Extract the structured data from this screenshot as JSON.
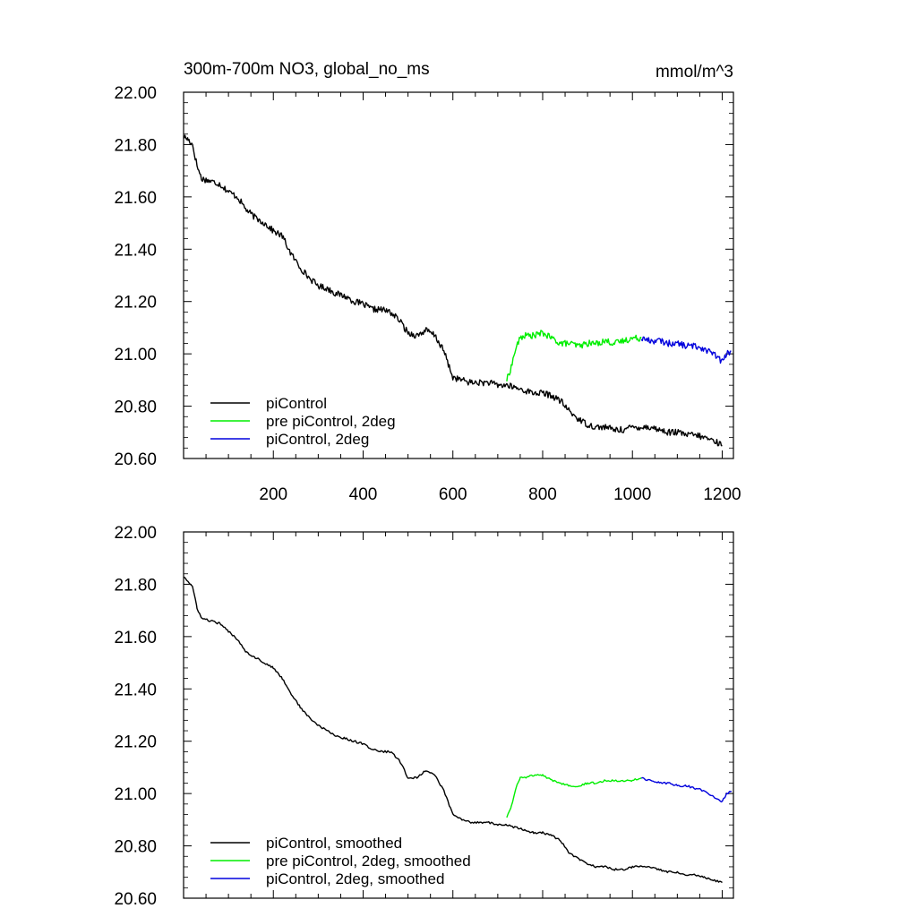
{
  "title_left": "300m-700m NO3, global_no_ms",
  "title_right": "mmol/m^3",
  "colors": {
    "piControl": "#000000",
    "pre": "#00ee00",
    "twodeg": "#0000dd",
    "axis": "#000000"
  },
  "chart_data": [
    {
      "type": "line",
      "title": "300m-700m NO3, global_no_ms",
      "units": "mmol/m^3",
      "xlim": [
        0,
        1225
      ],
      "ylim": [
        20.6,
        22.0
      ],
      "x_ticks": [
        200,
        400,
        600,
        800,
        1000,
        1200
      ],
      "x_tick_labels": [
        "200",
        "400",
        "600",
        "800",
        "1000",
        "1200"
      ],
      "y_ticks": [
        20.6,
        20.8,
        21.0,
        21.2,
        21.4,
        21.6,
        21.8,
        22.0
      ],
      "y_tick_labels": [
        "20.60",
        "20.80",
        "21.00",
        "21.20",
        "21.40",
        "21.60",
        "21.80",
        "22.00"
      ],
      "legend": "bottom-left",
      "series": [
        {
          "name": "piControl",
          "color": "#000000",
          "x": [
            1,
            10,
            20,
            30,
            40,
            60,
            80,
            100,
            120,
            140,
            160,
            180,
            200,
            220,
            240,
            260,
            280,
            300,
            320,
            340,
            360,
            380,
            400,
            420,
            440,
            460,
            480,
            500,
            520,
            540,
            560,
            580,
            600,
            620,
            640,
            660,
            680,
            700,
            720,
            740,
            760,
            780,
            800,
            820,
            840,
            860,
            880,
            900,
            920,
            940,
            960,
            980,
            1000,
            1020,
            1040,
            1060,
            1080,
            1100,
            1120,
            1140,
            1160,
            1180,
            1200
          ],
          "y": [
            21.83,
            21.82,
            21.8,
            21.72,
            21.67,
            21.66,
            21.65,
            21.62,
            21.6,
            21.55,
            21.52,
            21.5,
            21.47,
            21.45,
            21.38,
            21.33,
            21.29,
            21.26,
            21.25,
            21.23,
            21.22,
            21.2,
            21.19,
            21.17,
            21.17,
            21.16,
            21.13,
            21.08,
            21.07,
            21.09,
            21.07,
            21.01,
            20.91,
            20.9,
            20.89,
            20.89,
            20.89,
            20.88,
            20.88,
            20.87,
            20.86,
            20.85,
            20.85,
            20.84,
            20.82,
            20.78,
            20.75,
            20.73,
            20.72,
            20.72,
            20.71,
            20.71,
            20.72,
            20.72,
            20.72,
            20.71,
            20.7,
            20.7,
            20.69,
            20.69,
            20.68,
            20.67,
            20.65
          ]
        },
        {
          "name": "pre piControl, 2deg",
          "color": "#00ee00",
          "x": [
            720,
            730,
            740,
            750,
            760,
            780,
            800,
            820,
            840,
            860,
            880,
            900,
            920,
            940,
            960,
            980,
            1000,
            1020
          ],
          "y": [
            20.9,
            20.95,
            21.02,
            21.06,
            21.07,
            21.07,
            21.08,
            21.06,
            21.04,
            21.04,
            21.03,
            21.04,
            21.04,
            21.05,
            21.04,
            21.05,
            21.06,
            21.06
          ]
        },
        {
          "name": "piControl, 2deg",
          "color": "#0000dd",
          "x": [
            1020,
            1040,
            1060,
            1080,
            1100,
            1120,
            1140,
            1160,
            1180,
            1200,
            1210,
            1220
          ],
          "y": [
            21.06,
            21.05,
            21.05,
            21.04,
            21.04,
            21.03,
            21.03,
            21.02,
            21.0,
            20.97,
            21.0,
            21.01
          ]
        }
      ]
    },
    {
      "type": "line",
      "xlim": [
        0,
        1225
      ],
      "ylim": [
        20.6,
        22.0
      ],
      "y_ticks": [
        20.6,
        20.8,
        21.0,
        21.2,
        21.4,
        21.6,
        21.8,
        22.0
      ],
      "y_tick_labels": [
        "20.60",
        "20.80",
        "21.00",
        "21.20",
        "21.40",
        "21.60",
        "21.80",
        "22.00"
      ],
      "legend": "bottom-left",
      "series": [
        {
          "name": "piControl, smoothed",
          "color": "#000000",
          "x": [
            1,
            10,
            20,
            30,
            40,
            60,
            80,
            100,
            120,
            140,
            160,
            180,
            200,
            220,
            240,
            260,
            280,
            300,
            320,
            340,
            360,
            380,
            400,
            420,
            440,
            460,
            480,
            500,
            520,
            540,
            560,
            580,
            600,
            620,
            640,
            660,
            680,
            700,
            720,
            740,
            760,
            780,
            800,
            820,
            840,
            860,
            880,
            900,
            920,
            940,
            960,
            980,
            1000,
            1020,
            1040,
            1060,
            1080,
            1100,
            1120,
            1140,
            1160,
            1180,
            1200
          ],
          "y": [
            21.83,
            21.81,
            21.79,
            21.71,
            21.67,
            21.66,
            21.65,
            21.62,
            21.59,
            21.54,
            21.52,
            21.5,
            21.48,
            21.44,
            21.38,
            21.33,
            21.29,
            21.26,
            21.24,
            21.22,
            21.21,
            21.2,
            21.19,
            21.17,
            21.16,
            21.16,
            21.13,
            21.06,
            21.06,
            21.09,
            21.07,
            21.01,
            20.92,
            20.9,
            20.89,
            20.89,
            20.89,
            20.88,
            20.88,
            20.87,
            20.86,
            20.85,
            20.85,
            20.84,
            20.82,
            20.77,
            20.75,
            20.73,
            20.72,
            20.72,
            20.71,
            20.71,
            20.72,
            20.72,
            20.72,
            20.71,
            20.7,
            20.7,
            20.69,
            20.69,
            20.68,
            20.67,
            20.66
          ]
        },
        {
          "name": "pre piControl, 2deg, smoothed",
          "color": "#00ee00",
          "x": [
            720,
            730,
            740,
            750,
            760,
            780,
            800,
            820,
            840,
            860,
            880,
            900,
            920,
            940,
            960,
            980,
            1000,
            1020
          ],
          "y": [
            20.91,
            20.95,
            21.02,
            21.06,
            21.06,
            21.07,
            21.07,
            21.05,
            21.04,
            21.03,
            21.03,
            21.04,
            21.04,
            21.05,
            21.05,
            21.05,
            21.05,
            21.06
          ]
        },
        {
          "name": "piControl, 2deg, smoothed",
          "color": "#0000dd",
          "x": [
            1020,
            1040,
            1060,
            1080,
            1100,
            1120,
            1140,
            1160,
            1180,
            1200,
            1210,
            1220
          ],
          "y": [
            21.06,
            21.05,
            21.04,
            21.04,
            21.03,
            21.03,
            21.02,
            21.01,
            20.99,
            20.97,
            21.0,
            21.01
          ]
        }
      ]
    }
  ]
}
